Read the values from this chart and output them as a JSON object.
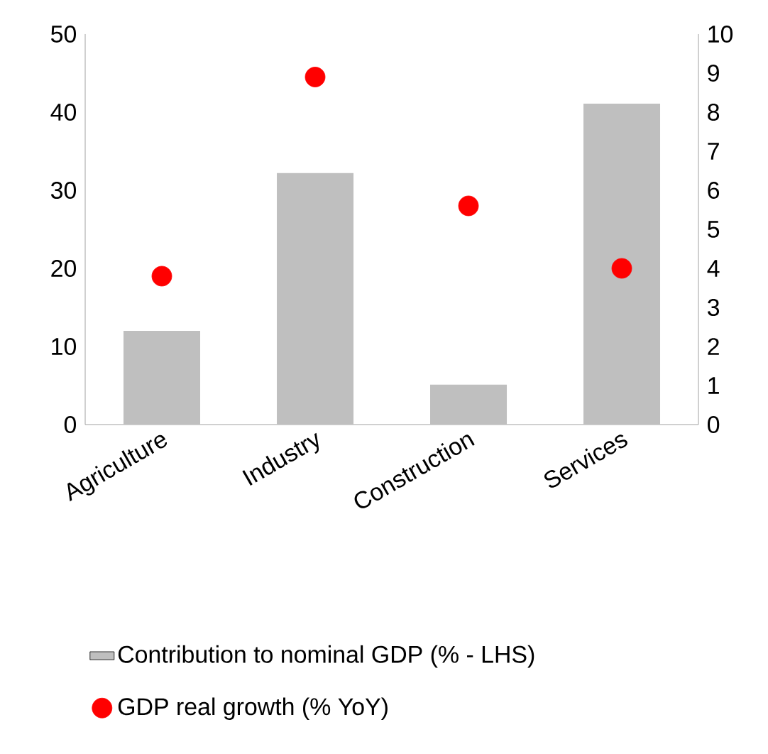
{
  "chart_data": {
    "type": "bar",
    "categories": [
      "Agriculture",
      "Industry",
      "Construction",
      "Services"
    ],
    "series": [
      {
        "name": "Contribution to nominal GDP (% - LHS)",
        "color": "#bfbfbf",
        "values": [
          12,
          32.2,
          5.1,
          41.1
        ]
      },
      {
        "name": "GDP real growth (% YoY)",
        "type": "scatter",
        "axis": "y2",
        "color": "#ff0000",
        "values": [
          3.8,
          8.9,
          5.6,
          4.0
        ]
      }
    ],
    "ylim": [
      0,
      50
    ],
    "yticks": [
      0,
      10,
      20,
      30,
      40,
      50
    ],
    "y2lim": [
      0,
      10
    ],
    "y2ticks": [
      0,
      1,
      2,
      3,
      4,
      5,
      6,
      7,
      8,
      9,
      10
    ],
    "legend": "bottom",
    "grid": false
  }
}
